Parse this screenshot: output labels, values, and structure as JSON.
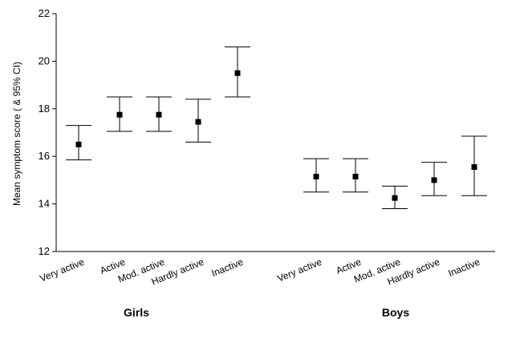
{
  "chart_data": {
    "type": "scatter",
    "subtype": "error-bar",
    "ylabel": "Mean symptom score ( & 95% CI)",
    "xlabel": "",
    "ylim": [
      12,
      22
    ],
    "yticks": [
      12,
      14,
      16,
      18,
      20,
      22
    ],
    "grid": false,
    "legend": "none",
    "marker_color": "#000000",
    "groups": [
      {
        "label": "Girls",
        "points": [
          {
            "category": "Very active",
            "mean": 16.5,
            "lower": 15.85,
            "upper": 17.3
          },
          {
            "category": "Active",
            "mean": 17.75,
            "lower": 17.05,
            "upper": 18.5
          },
          {
            "category": "Mod. active",
            "mean": 17.75,
            "lower": 17.05,
            "upper": 18.5
          },
          {
            "category": "Hardly active",
            "mean": 17.45,
            "lower": 16.6,
            "upper": 18.4
          },
          {
            "category": "Inactive",
            "mean": 19.5,
            "lower": 18.5,
            "upper": 20.6
          }
        ]
      },
      {
        "label": "Boys",
        "points": [
          {
            "category": "Very active",
            "mean": 15.15,
            "lower": 14.5,
            "upper": 15.9
          },
          {
            "category": "Active",
            "mean": 15.15,
            "lower": 14.5,
            "upper": 15.9
          },
          {
            "category": "Mod. active",
            "mean": 14.25,
            "lower": 13.8,
            "upper": 14.75
          },
          {
            "category": "Hardly active",
            "mean": 15.0,
            "lower": 14.35,
            "upper": 15.75
          },
          {
            "category": "Inactive",
            "mean": 15.55,
            "lower": 14.35,
            "upper": 16.85
          }
        ]
      }
    ]
  }
}
